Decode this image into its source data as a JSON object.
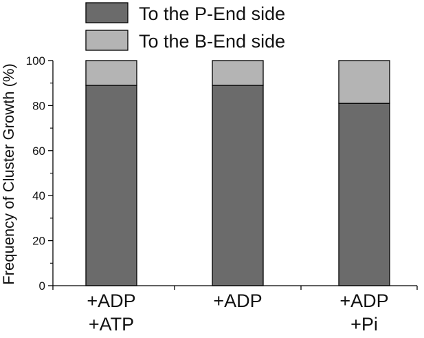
{
  "chart_data": {
    "type": "bar",
    "stacked": true,
    "categories": [
      [
        "+ADP",
        "+ATP"
      ],
      [
        "+ADP"
      ],
      [
        "+ADP",
        "+Pi"
      ]
    ],
    "series": [
      {
        "name": "To the P-End side",
        "color": "#6b6b6b",
        "values": [
          89,
          89,
          81
        ]
      },
      {
        "name": "To the B-End side",
        "color": "#b4b4b4",
        "values": [
          11,
          11,
          19
        ]
      }
    ],
    "ylabel": "Frequency of Cluster Growth (%)",
    "ylim": [
      0,
      100
    ],
    "yticks": [
      0,
      20,
      40,
      60,
      80,
      100
    ],
    "legend_position": "top",
    "grid": false
  }
}
